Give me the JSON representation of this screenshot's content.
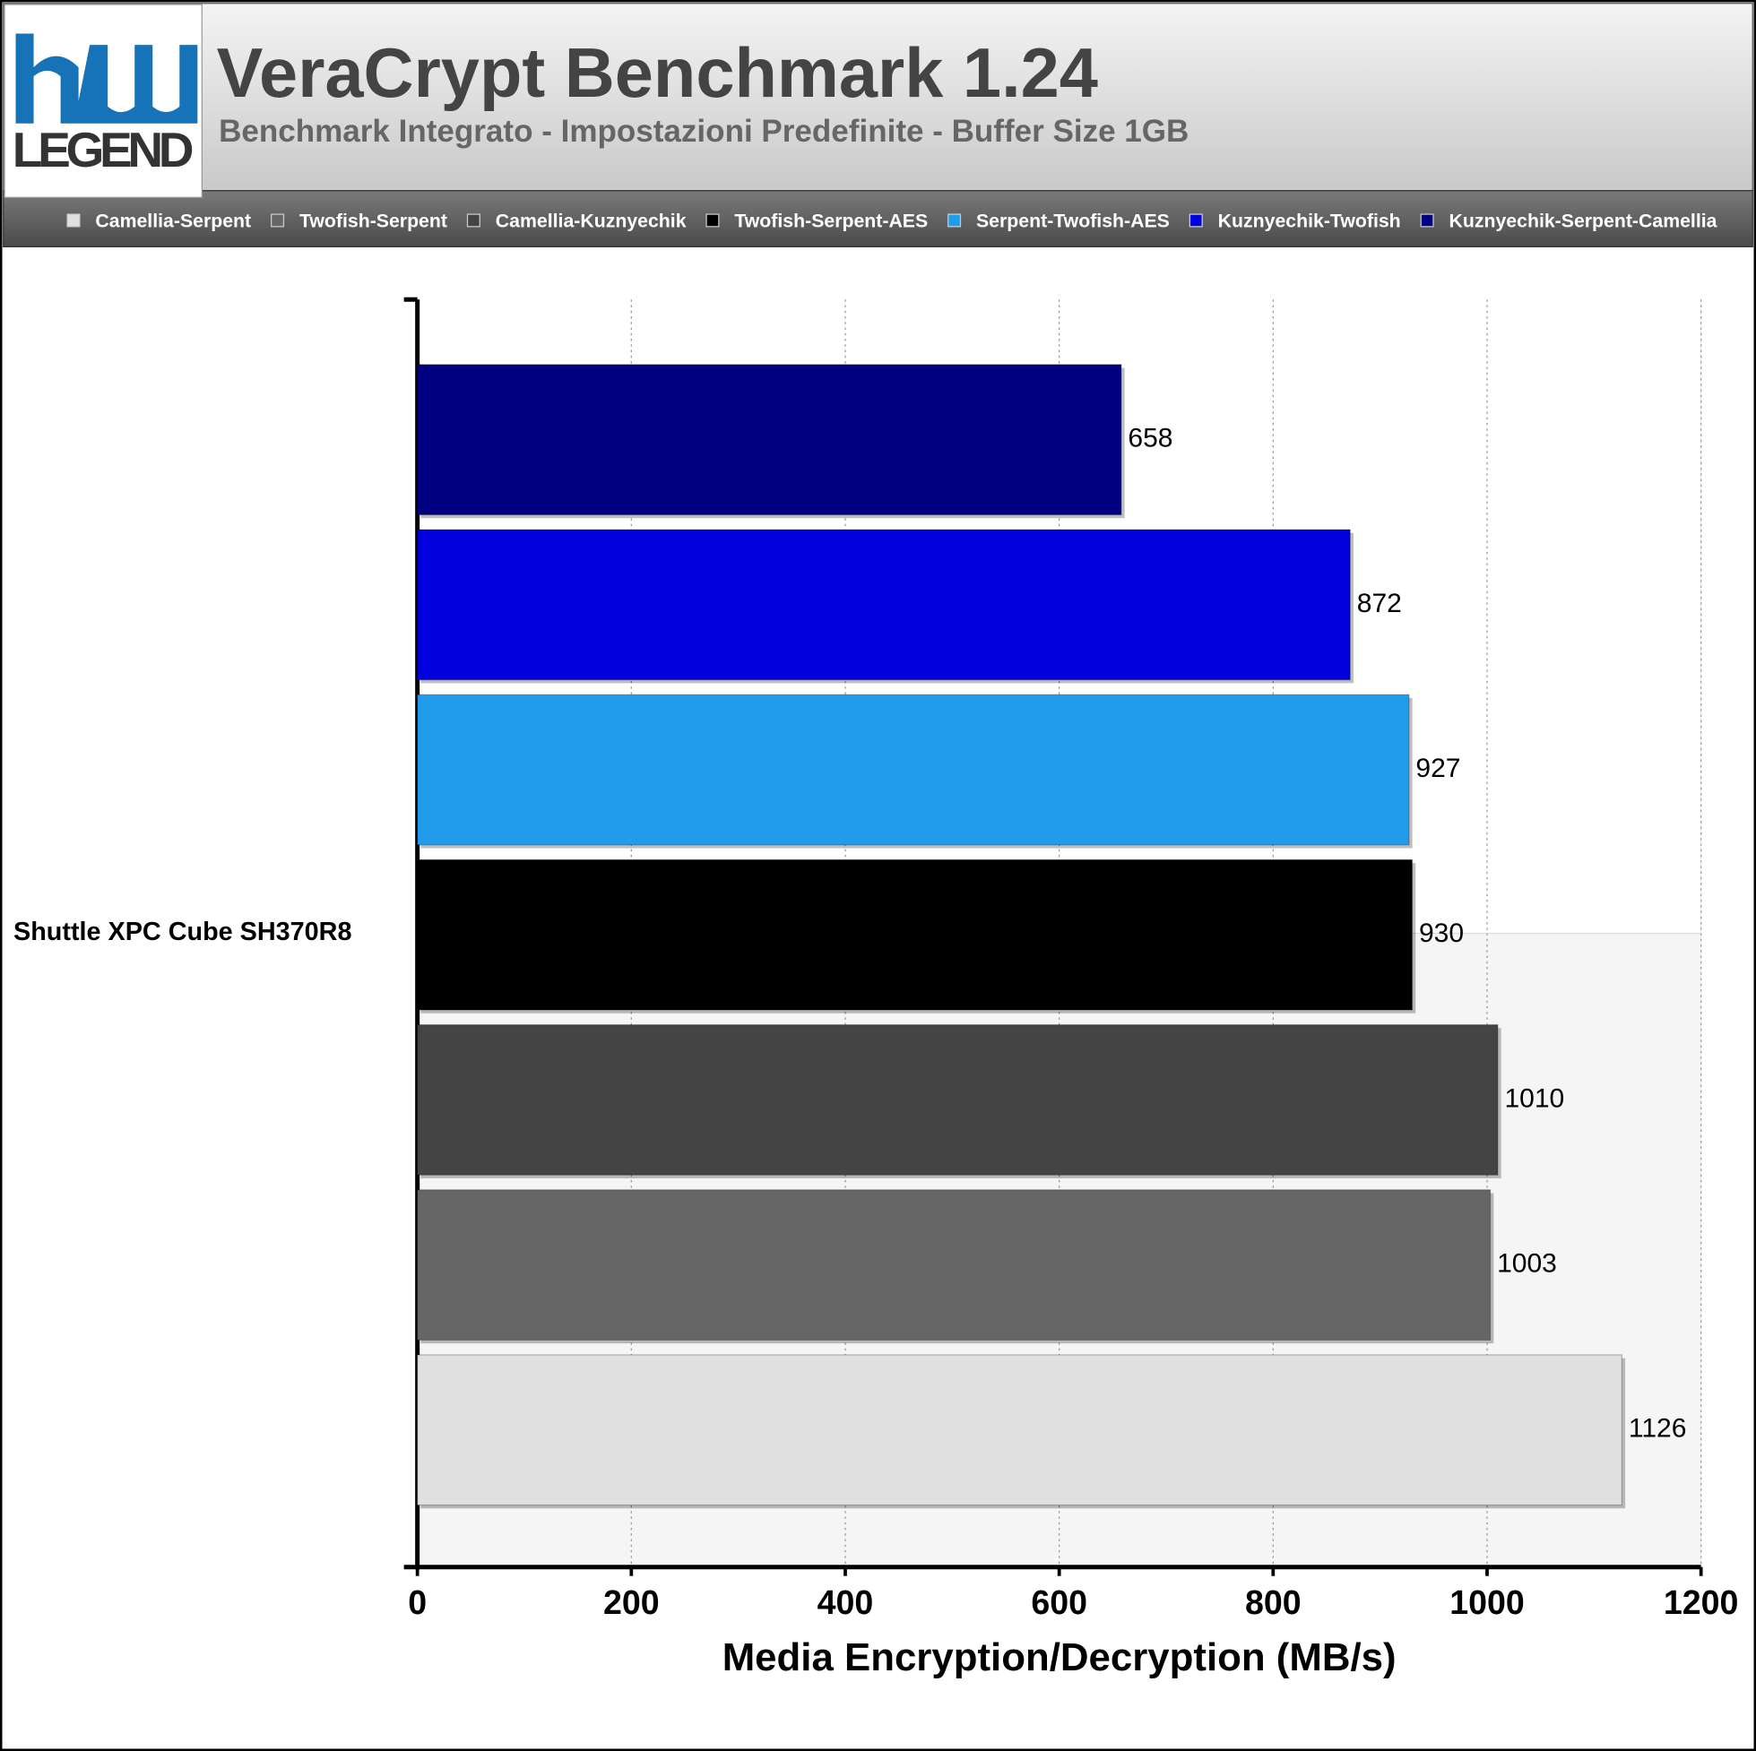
{
  "chart_data": {
    "type": "bar",
    "orientation": "horizontal",
    "logo_text": "LEGEND",
    "title": "VeraCrypt Benchmark 1.24",
    "subtitle": "Benchmark Integrato - Impostazioni Predefinite - Buffer Size 1GB",
    "x_label": "Media Encryption/Decryption (MB/s)",
    "categories": [
      "Shuttle XPC Cube SH370R8"
    ],
    "series": [
      {
        "name": "Camellia-Serpent",
        "color": "#e0e0e0",
        "values": [
          1126
        ]
      },
      {
        "name": "Twofish-Serpent",
        "color": "#666666",
        "values": [
          1003
        ]
      },
      {
        "name": "Camellia-Kuznyechik",
        "color": "#444444",
        "values": [
          1010
        ]
      },
      {
        "name": "Twofish-Serpent-AES",
        "color": "#000000",
        "values": [
          930
        ]
      },
      {
        "name": "Serpent-Twofish-AES",
        "color": "#219ced",
        "values": [
          927
        ]
      },
      {
        "name": "Kuznyechik-Twofish",
        "color": "#0000dd",
        "values": [
          872
        ]
      },
      {
        "name": "Kuznyechik-Serpent-Camellia",
        "color": "#000080",
        "values": [
          658
        ]
      }
    ],
    "xlim": [
      0,
      1200
    ],
    "xticks": [
      0,
      200,
      400,
      600,
      800,
      1000,
      1200
    ],
    "grid": true
  }
}
